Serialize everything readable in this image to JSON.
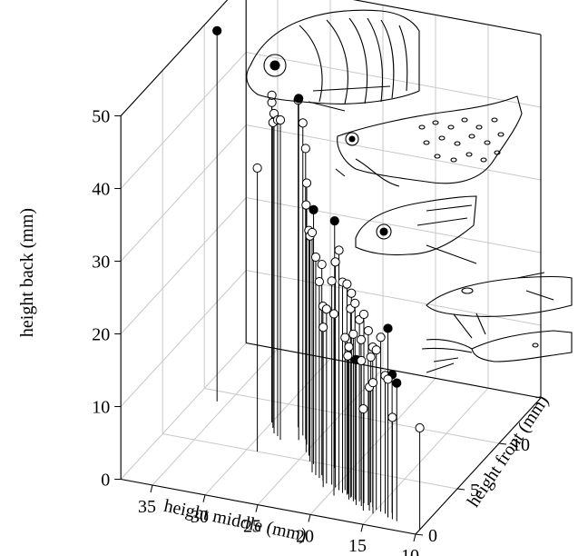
{
  "chart_data": {
    "type": "scatter3d",
    "title": "",
    "axes": {
      "x": {
        "label": "height middle (mm)",
        "ticks": [
          35,
          30,
          25,
          20,
          15,
          10
        ],
        "range": [
          10,
          38
        ]
      },
      "y": {
        "label": "height front (mm)",
        "ticks": [
          0,
          5,
          10
        ],
        "range": [
          0,
          15
        ]
      },
      "z": {
        "label": "height back (mm)",
        "ticks": [
          0,
          10,
          20,
          30,
          40,
          50
        ],
        "range": [
          0,
          50
        ]
      }
    },
    "grid": true,
    "marker_style": "stem with circle marker",
    "series": [
      {
        "name": "",
        "fill": "#ffffff",
        "stroke": "#000000",
        "points": [
          [
            30,
            8,
            44
          ],
          [
            29.5,
            7.5,
            42
          ],
          [
            30,
            8,
            45
          ],
          [
            29,
            7,
            44
          ],
          [
            28.5,
            6.8,
            43.5
          ],
          [
            28,
            6.5,
            44
          ],
          [
            29,
            5,
            39
          ],
          [
            27.5,
            8,
            45
          ],
          [
            26.5,
            7.3,
            43
          ],
          [
            26,
            7,
            40
          ],
          [
            25.5,
            6.5,
            36
          ],
          [
            25,
            5.8,
            34
          ],
          [
            24.5,
            5.5,
            31
          ],
          [
            24,
            5,
            31
          ],
          [
            23,
            4,
            33
          ],
          [
            22.5,
            3.8,
            30
          ],
          [
            22,
            3.6,
            27
          ],
          [
            21.5,
            3.4,
            24
          ],
          [
            21,
            3.2,
            24
          ],
          [
            20,
            3,
            31
          ],
          [
            19.5,
            2.8,
            33
          ],
          [
            19,
            2.6,
            29
          ],
          [
            18.5,
            2.5,
            29
          ],
          [
            18,
            2.4,
            28
          ],
          [
            17.5,
            2.2,
            27
          ],
          [
            17,
            2.1,
            25
          ],
          [
            16.5,
            2,
            26
          ],
          [
            16,
            1.9,
            24
          ],
          [
            15.5,
            1.8,
            22
          ],
          [
            16,
            2.2,
            20
          ],
          [
            15,
            1.6,
            22
          ],
          [
            14.5,
            1.5,
            24
          ],
          [
            17.5,
            2,
            23
          ],
          [
            18.5,
            2.6,
            19
          ],
          [
            19,
            2.9,
            21
          ],
          [
            17,
            2.3,
            22
          ],
          [
            16.5,
            1.7,
            20
          ],
          [
            18,
            2.1,
            21
          ],
          [
            19.5,
            2.2,
            25
          ],
          [
            21,
            2.8,
            22
          ],
          [
            20.5,
            3.2,
            28
          ],
          [
            22,
            3.9,
            29
          ],
          [
            15.5,
            1.4,
            17
          ],
          [
            16,
            1.3,
            14
          ],
          [
            14,
            1.4,
            19
          ],
          [
            15,
            1.2,
            18
          ],
          [
            13.5,
            1.1,
            19
          ],
          [
            13,
            1,
            14
          ],
          [
            18,
            2.3,
            26
          ],
          [
            10,
            0.5,
            14
          ]
        ]
      },
      {
        "name": "",
        "fill": "#000000",
        "stroke": "#000000",
        "points": [
          [
            36,
            9,
            51
          ],
          [
            26.5,
            6.8,
            47
          ],
          [
            23.5,
            4.8,
            35
          ],
          [
            21.5,
            4.8,
            34
          ],
          [
            13.5,
            1.1,
            26
          ],
          [
            12.5,
            0.9,
            19
          ],
          [
            13.5,
            1.6,
            19
          ],
          [
            17,
            1.7,
            20
          ]
        ]
      }
    ]
  },
  "illustrations": [
    {
      "name": "fish-silhouette-1",
      "kind": "line drawing of a deep-bodied fish head"
    },
    {
      "name": "fish-silhouette-2",
      "kind": "line drawing of a spotted fish"
    },
    {
      "name": "fish-silhouette-3",
      "kind": "line drawing of a fish head"
    },
    {
      "name": "fish-silhouette-4",
      "kind": "line drawing of a slender fish"
    },
    {
      "name": "fish-silhouette-5",
      "kind": "line drawing of a barbeled fish"
    }
  ]
}
